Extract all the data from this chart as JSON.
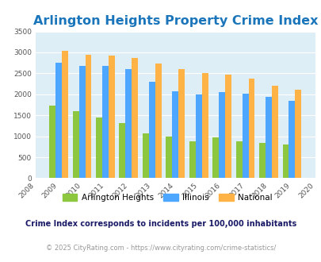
{
  "title": "Arlington Heights Property Crime Index",
  "years": [
    2009,
    2010,
    2011,
    2012,
    2013,
    2014,
    2015,
    2016,
    2017,
    2018,
    2019
  ],
  "arlington_heights": [
    1725,
    1600,
    1450,
    1310,
    1075,
    985,
    875,
    965,
    870,
    850,
    800
  ],
  "illinois": [
    2750,
    2670,
    2680,
    2600,
    2290,
    2065,
    1995,
    2050,
    2010,
    1940,
    1845
  ],
  "national": [
    3040,
    2950,
    2920,
    2860,
    2730,
    2610,
    2500,
    2475,
    2375,
    2200,
    2110
  ],
  "bar_colors": {
    "arlington_heights": "#8dc63f",
    "illinois": "#4da6ff",
    "national": "#ffb347"
  },
  "xlim": [
    2008,
    2020
  ],
  "ylim": [
    0,
    3500
  ],
  "yticks": [
    0,
    500,
    1000,
    1500,
    2000,
    2500,
    3000,
    3500
  ],
  "xticks": [
    2008,
    2009,
    2010,
    2011,
    2012,
    2013,
    2014,
    2015,
    2016,
    2017,
    2018,
    2019,
    2020
  ],
  "plot_bg_color": "#deeef7",
  "title_color": "#1a75bb",
  "title_fontsize": 11.5,
  "legend_labels": [
    "Arlington Heights",
    "Illinois",
    "National"
  ],
  "footnote1": "Crime Index corresponds to incidents per 100,000 inhabitants",
  "footnote2": "© 2025 CityRating.com - https://www.cityrating.com/crime-statistics/",
  "footnote1_color": "#1a1a66",
  "footnote2_color": "#999999",
  "bar_width": 0.27
}
